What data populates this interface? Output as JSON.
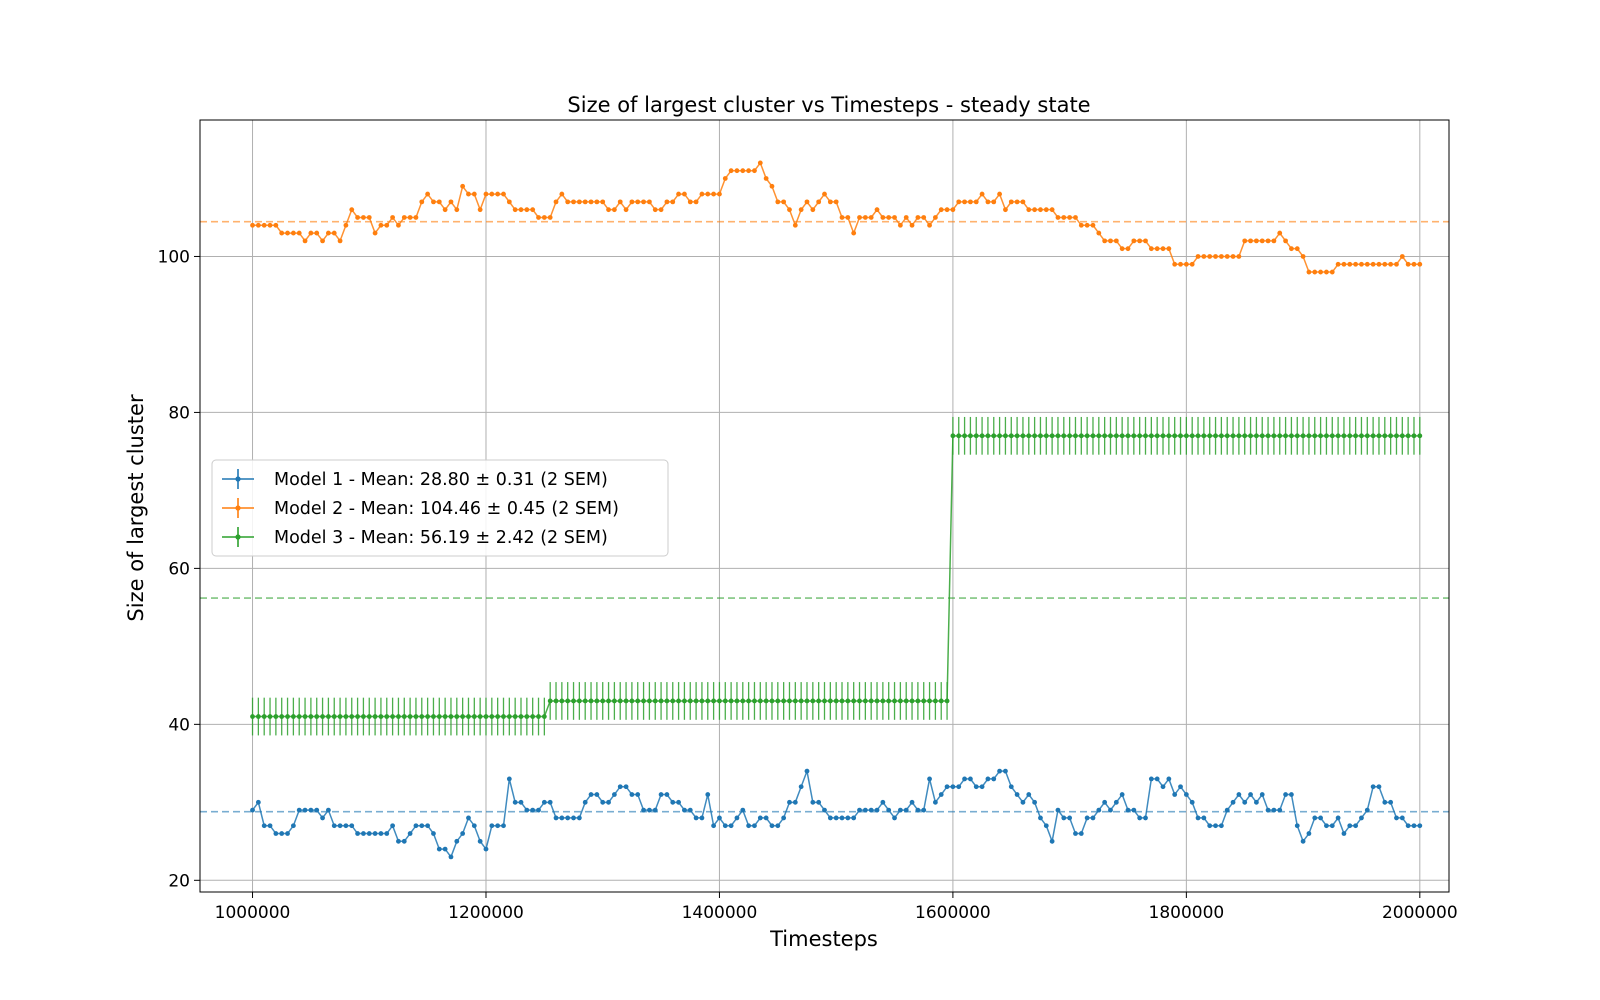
{
  "chart_data": {
    "type": "line",
    "title": "Size of largest cluster vs Timesteps - steady state",
    "xlabel": "Timesteps",
    "ylabel": "Size of largest cluster",
    "xlim": [
      955000,
      2025000
    ],
    "ylim": [
      18.5,
      117.5
    ],
    "xticks": [
      1000000,
      1200000,
      1400000,
      1600000,
      1800000,
      2000000
    ],
    "yticks": [
      20,
      40,
      60,
      80,
      100
    ],
    "grid": true,
    "legend_position": "center-left",
    "x": {
      "start": 1000000,
      "step": 5000,
      "count": 201
    },
    "series": [
      {
        "name": "Model 1 - Mean: 28.80 ± 0.31 (2 SEM)",
        "color": "#1f77b4",
        "mean": 28.8,
        "error": null,
        "values": [
          29,
          30,
          27,
          27,
          26,
          26,
          26,
          27,
          29,
          29,
          29,
          29,
          28,
          29,
          27,
          27,
          27,
          27,
          26,
          26,
          26,
          26,
          26,
          26,
          27,
          25,
          25,
          26,
          27,
          27,
          27,
          26,
          24,
          24,
          23,
          25,
          26,
          28,
          27,
          25,
          24,
          27,
          27,
          27,
          33,
          30,
          30,
          29,
          29,
          29,
          30,
          30,
          28,
          28,
          28,
          28,
          28,
          30,
          31,
          31,
          30,
          30,
          31,
          32,
          32,
          31,
          31,
          29,
          29,
          29,
          31,
          31,
          30,
          30,
          29,
          29,
          28,
          28,
          31,
          27,
          28,
          27,
          27,
          28,
          29,
          27,
          27,
          28,
          28,
          27,
          27,
          28,
          30,
          30,
          32,
          34,
          30,
          30,
          29,
          28,
          28,
          28,
          28,
          28,
          29,
          29,
          29,
          29,
          30,
          29,
          28,
          29,
          29,
          30,
          29,
          29,
          33,
          30,
          31,
          32,
          32,
          32,
          33,
          33,
          32,
          32,
          33,
          33,
          34,
          34,
          32,
          31,
          30,
          31,
          30,
          28,
          27,
          25,
          29,
          28,
          28,
          26,
          26,
          28,
          28,
          29,
          30,
          29,
          30,
          31,
          29,
          29,
          28,
          28,
          33,
          33,
          32,
          33,
          31,
          32,
          31,
          30,
          28,
          28,
          27,
          27,
          27,
          29,
          30,
          31,
          30,
          31,
          30,
          31,
          29,
          29,
          29,
          31,
          31,
          27,
          25,
          26,
          28,
          28,
          27,
          27,
          28,
          26,
          27,
          27,
          28,
          29,
          32,
          32,
          30,
          30,
          28,
          28,
          27,
          27,
          27
        ]
      },
      {
        "name": "Model 2 - Mean: 104.46 ± 0.45 (2 SEM)",
        "color": "#ff7f0e",
        "mean": 104.46,
        "error": null,
        "values": [
          104,
          104,
          104,
          104,
          104,
          103,
          103,
          103,
          103,
          102,
          103,
          103,
          102,
          103,
          103,
          102,
          104,
          106,
          105,
          105,
          105,
          103,
          104,
          104,
          105,
          104,
          105,
          105,
          105,
          107,
          108,
          107,
          107,
          106,
          107,
          106,
          109,
          108,
          108,
          106,
          108,
          108,
          108,
          108,
          107,
          106,
          106,
          106,
          106,
          105,
          105,
          105,
          107,
          108,
          107,
          107,
          107,
          107,
          107,
          107,
          107,
          106,
          106,
          107,
          106,
          107,
          107,
          107,
          107,
          106,
          106,
          107,
          107,
          108,
          108,
          107,
          107,
          108,
          108,
          108,
          108,
          110,
          111,
          111,
          111,
          111,
          111,
          112,
          110,
          109,
          107,
          107,
          106,
          104,
          106,
          107,
          106,
          107,
          108,
          107,
          107,
          105,
          105,
          103,
          105,
          105,
          105,
          106,
          105,
          105,
          105,
          104,
          105,
          104,
          105,
          105,
          104,
          105,
          106,
          106,
          106,
          107,
          107,
          107,
          107,
          108,
          107,
          107,
          108,
          106,
          107,
          107,
          107,
          106,
          106,
          106,
          106,
          106,
          105,
          105,
          105,
          105,
          104,
          104,
          104,
          103,
          102,
          102,
          102,
          101,
          101,
          102,
          102,
          102,
          101,
          101,
          101,
          101,
          99,
          99,
          99,
          99,
          100,
          100,
          100,
          100,
          100,
          100,
          100,
          100,
          102,
          102,
          102,
          102,
          102,
          102,
          103,
          102,
          101,
          101,
          100,
          98,
          98,
          98,
          98,
          98,
          99,
          99,
          99,
          99,
          99,
          99,
          99,
          99,
          99,
          99,
          99,
          100,
          99,
          99,
          99
        ]
      },
      {
        "name": "Model 3 - Mean: 56.19 ± 2.42 (2 SEM)",
        "color": "#2ca02c",
        "mean": 56.19,
        "error": 2.42,
        "segments": [
          {
            "x_start": 1000000,
            "x_end": 1250000,
            "value": 41
          },
          {
            "x_start": 1255000,
            "x_end": 1595000,
            "value": 43
          },
          {
            "x_start": 1600000,
            "x_end": 2000000,
            "value": 77
          }
        ]
      }
    ]
  }
}
